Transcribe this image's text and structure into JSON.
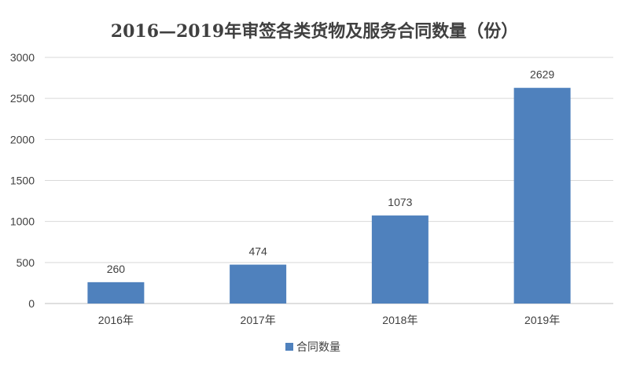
{
  "chart_data": {
    "type": "bar",
    "title": "2016—2019年审签各类货物及服务合同数量（份）",
    "categories": [
      "2016年",
      "2017年",
      "2018年",
      "2019年"
    ],
    "series": [
      {
        "name": "合同数量",
        "values": [
          260,
          474,
          1073,
          2629
        ],
        "color": "#4f81bd"
      }
    ],
    "ylim": [
      0,
      3000
    ],
    "yticks": [
      "0",
      "500",
      "1000",
      "1500",
      "2000",
      "2500",
      "3000"
    ],
    "data_labels": [
      "260",
      "474",
      "1073",
      "2629"
    ],
    "grid": true,
    "legend_position": "bottom"
  }
}
